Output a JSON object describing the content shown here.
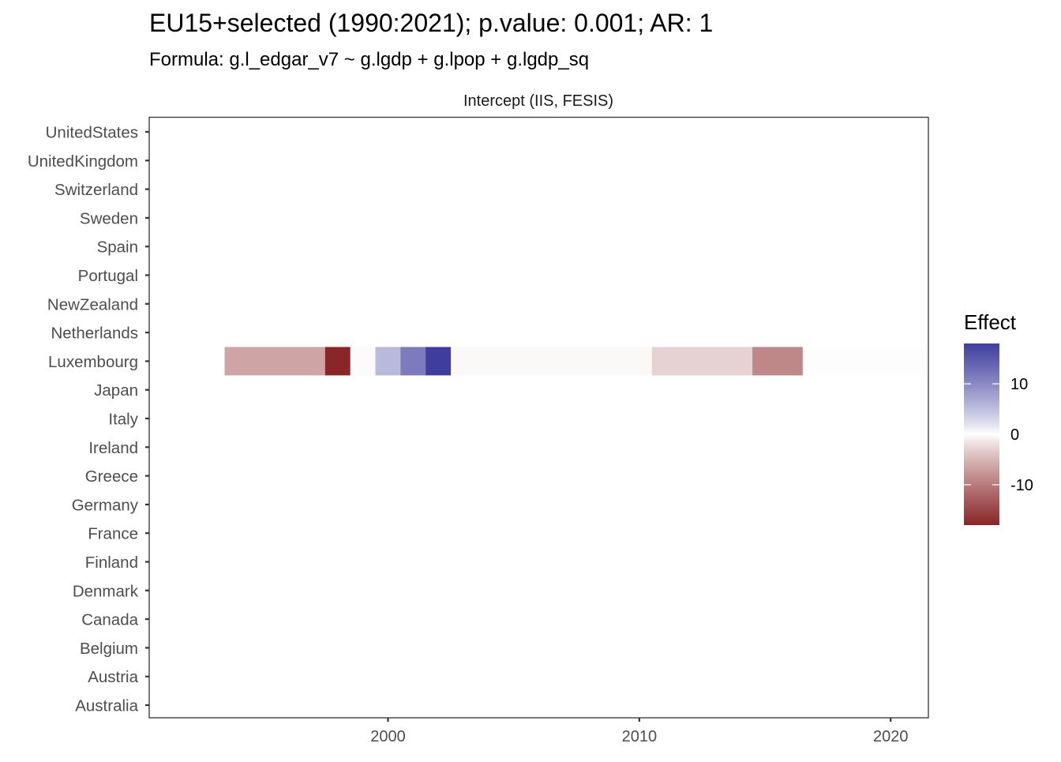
{
  "chart_data": {
    "type": "heatmap",
    "title": "EU15+selected (1990:2021); p.value: 0.001; AR: 1",
    "subtitle": "Formula: g.l_edgar_v7 ~ g.lgdp + g.lpop + g.lgdp_sq",
    "facet_label": "Intercept (IIS, FESIS)",
    "xlabel": "",
    "ylabel": "",
    "xlim": [
      1990.5,
      2021.5
    ],
    "x_ticks": [
      2000,
      2010,
      2020
    ],
    "countries": [
      "UnitedStates",
      "UnitedKingdom",
      "Switzerland",
      "Sweden",
      "Spain",
      "Portugal",
      "NewZealand",
      "Netherlands",
      "Luxembourg",
      "Japan",
      "Italy",
      "Ireland",
      "Greece",
      "Germany",
      "France",
      "Finland",
      "Denmark",
      "Canada",
      "Belgium",
      "Austria",
      "Australia"
    ],
    "series": [
      {
        "country": "Luxembourg",
        "years": [
          1994,
          1995,
          1996,
          1997,
          1998,
          1999,
          2000,
          2001,
          2002,
          2003,
          2004,
          2005,
          2006,
          2007,
          2008,
          2009,
          2010,
          2011,
          2012,
          2013,
          2014,
          2015,
          2016,
          2017,
          2018,
          2019,
          2020,
          2021
        ],
        "values": [
          -6.5,
          -6.5,
          -6.5,
          -6.5,
          -18,
          -0.2,
          5.5,
          11.5,
          18,
          -0.3,
          -0.3,
          -0.3,
          -0.3,
          -0.3,
          -0.3,
          -0.3,
          -0.3,
          -2.8,
          -2.8,
          -2.8,
          -2.8,
          -9,
          -9,
          0.1,
          0.1,
          0.1,
          0.1,
          0.1
        ]
      }
    ],
    "legend": {
      "title": "Effect",
      "position": "right",
      "ticks": [
        10,
        0,
        -10
      ],
      "tick_labels": [
        "10",
        "0",
        "-10"
      ],
      "limits": [
        -18,
        18
      ],
      "colors": {
        "high": "#3f3e9e",
        "mid": "#ffffff",
        "low": "#8a2628"
      }
    },
    "grid": false
  }
}
